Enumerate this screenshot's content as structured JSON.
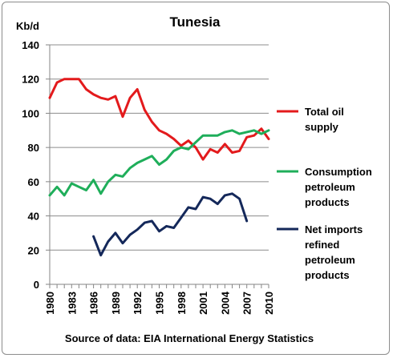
{
  "chart_data": {
    "type": "line",
    "title": "Tunesia",
    "ylabel": "Kb/d",
    "xlabel": "",
    "source": "Source of data: EIA International Energy Statistics",
    "ylim": [
      0,
      140
    ],
    "yticks": [
      0,
      20,
      40,
      60,
      80,
      100,
      120,
      140
    ],
    "xlim": [
      1980,
      2010
    ],
    "xticks": [
      1980,
      1983,
      1986,
      1989,
      1992,
      1995,
      1998,
      2001,
      2004,
      2007,
      2010
    ],
    "grid": "horizontal",
    "legend_position": "right",
    "series": [
      {
        "name": "Total oil supply",
        "legend_lines": [
          "Total oil",
          "supply"
        ],
        "color": "#e31a1c",
        "x": [
          1980,
          1981,
          1982,
          1983,
          1984,
          1985,
          1986,
          1987,
          1988,
          1989,
          1990,
          1991,
          1992,
          1993,
          1994,
          1995,
          1996,
          1997,
          1998,
          1999,
          2000,
          2001,
          2002,
          2003,
          2004,
          2005,
          2006,
          2007,
          2008,
          2009,
          2010
        ],
        "values": [
          109,
          118,
          120,
          120,
          120,
          114,
          111,
          109,
          108,
          110,
          98,
          109,
          114,
          102,
          95,
          90,
          88,
          85,
          81,
          84,
          80,
          73,
          79,
          77,
          82,
          77,
          78,
          86,
          87,
          91,
          85
        ]
      },
      {
        "name": "Consumption petroleum products",
        "legend_lines": [
          "Consumption",
          "petroleum",
          "products"
        ],
        "color": "#1fae5a",
        "x": [
          1980,
          1981,
          1982,
          1983,
          1984,
          1985,
          1986,
          1987,
          1988,
          1989,
          1990,
          1991,
          1992,
          1993,
          1994,
          1995,
          1996,
          1997,
          1998,
          1999,
          2000,
          2001,
          2002,
          2003,
          2004,
          2005,
          2006,
          2007,
          2008,
          2009,
          2010
        ],
        "values": [
          52,
          57,
          52,
          59,
          57,
          55,
          61,
          53,
          60,
          64,
          63,
          68,
          71,
          73,
          75,
          70,
          73,
          78,
          80,
          79,
          83,
          87,
          87,
          87,
          89,
          90,
          88,
          89,
          90,
          88,
          90
        ]
      },
      {
        "name": "Net imports refined petroleum products",
        "legend_lines": [
          "Net imports",
          "refined",
          "petroleum",
          "products"
        ],
        "color": "#14285a",
        "x": [
          1986,
          1987,
          1988,
          1989,
          1990,
          1991,
          1992,
          1993,
          1994,
          1995,
          1996,
          1997,
          1998,
          1999,
          2000,
          2001,
          2002,
          2003,
          2004,
          2005,
          2006,
          2007
        ],
        "values": [
          28,
          17,
          25,
          30,
          24,
          29,
          32,
          36,
          37,
          31,
          34,
          33,
          39,
          45,
          44,
          51,
          50,
          47,
          52,
          53,
          50,
          37
        ]
      }
    ]
  }
}
